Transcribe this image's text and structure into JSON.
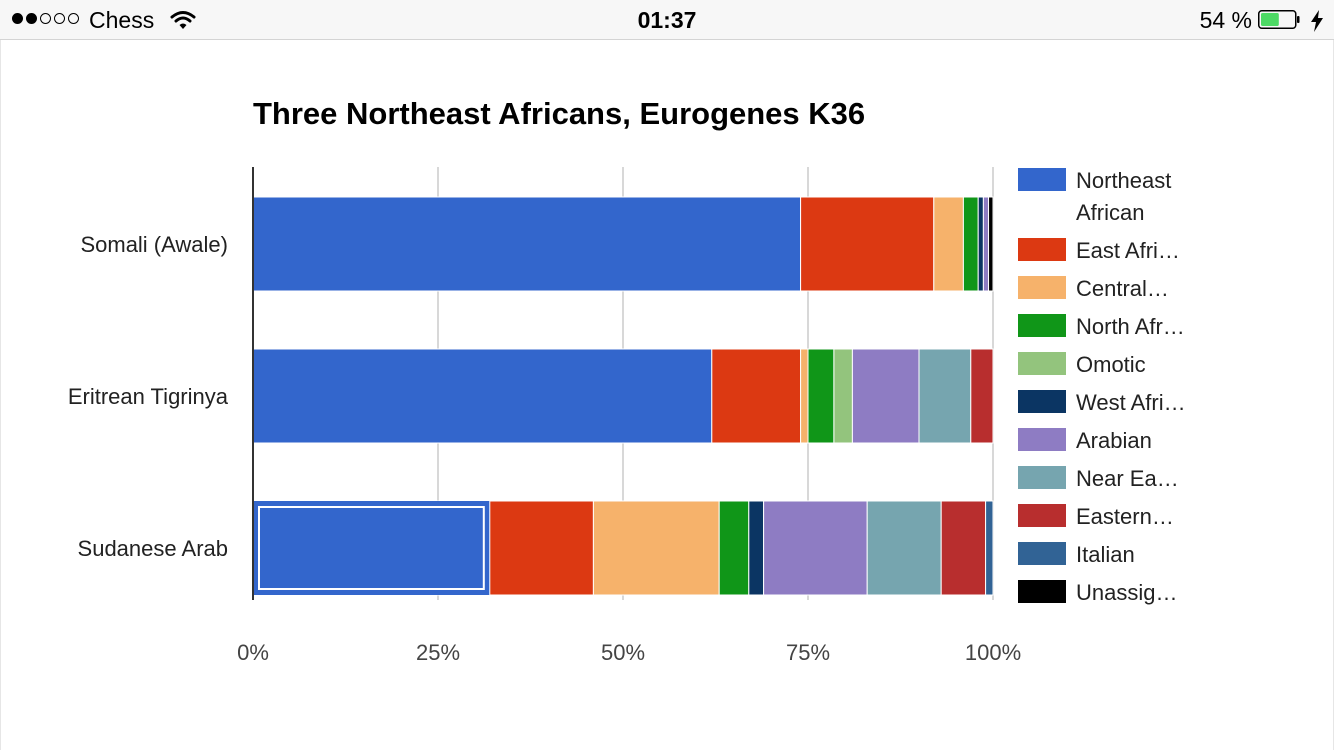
{
  "status_bar": {
    "carrier": "Chess",
    "time": "01:37",
    "battery_percent": "54 %",
    "battery_level": 0.54,
    "signal_bars_filled": 2,
    "signal_bars_total": 5,
    "battery_color": "#4cd964"
  },
  "chart_data": {
    "type": "bar",
    "orientation": "horizontal",
    "stacked": "percent",
    "title": "Three Northeast Africans, Eurogenes K36",
    "categories": [
      "Somali (Awale)",
      "Eritrean Tigrinya",
      "Sudanese Arab"
    ],
    "x_ticks": [
      "0%",
      "25%",
      "50%",
      "75%",
      "100%"
    ],
    "xlim": [
      0,
      100
    ],
    "grid": true,
    "legend_position": "right",
    "selected": {
      "category": "Sudanese Arab",
      "series": "Northeast African"
    },
    "series": [
      {
        "name": "Northeast African",
        "legend_lines": [
          "Northeast",
          "African"
        ],
        "color": "#3366cc",
        "values": [
          74,
          62,
          32
        ]
      },
      {
        "name": "East Afri…",
        "legend_lines": [
          "East Afri…"
        ],
        "color": "#dc3912",
        "values": [
          18,
          12,
          14
        ]
      },
      {
        "name": "Central…",
        "legend_lines": [
          "Central…"
        ],
        "color": "#f6b26b",
        "values": [
          4,
          1,
          17
        ]
      },
      {
        "name": "North Afr…",
        "legend_lines": [
          "North Afr…"
        ],
        "color": "#109618",
        "values": [
          2,
          3.5,
          4
        ]
      },
      {
        "name": "Omotic",
        "legend_lines": [
          "Omotic"
        ],
        "color": "#93c47d",
        "values": [
          0,
          2.5,
          0
        ]
      },
      {
        "name": "West Afri…",
        "legend_lines": [
          "West Afri…"
        ],
        "color": "#0b3563",
        "values": [
          0.7,
          0,
          2
        ]
      },
      {
        "name": "Arabian",
        "legend_lines": [
          "Arabian"
        ],
        "color": "#8e7cc3",
        "values": [
          0.7,
          9,
          14
        ]
      },
      {
        "name": "Near Ea…",
        "legend_lines": [
          "Near Ea…"
        ],
        "color": "#76a5af",
        "values": [
          0,
          7,
          10
        ]
      },
      {
        "name": "Eastern…",
        "legend_lines": [
          "Eastern…"
        ],
        "color": "#b82e2e",
        "values": [
          0,
          3,
          6
        ]
      },
      {
        "name": "Italian",
        "legend_lines": [
          "Italian"
        ],
        "color": "#316395",
        "values": [
          0,
          0,
          1
        ]
      },
      {
        "name": "Unassig…",
        "legend_lines": [
          "Unassig…"
        ],
        "color": "#000000",
        "values": [
          0.6,
          0,
          0
        ]
      }
    ]
  }
}
